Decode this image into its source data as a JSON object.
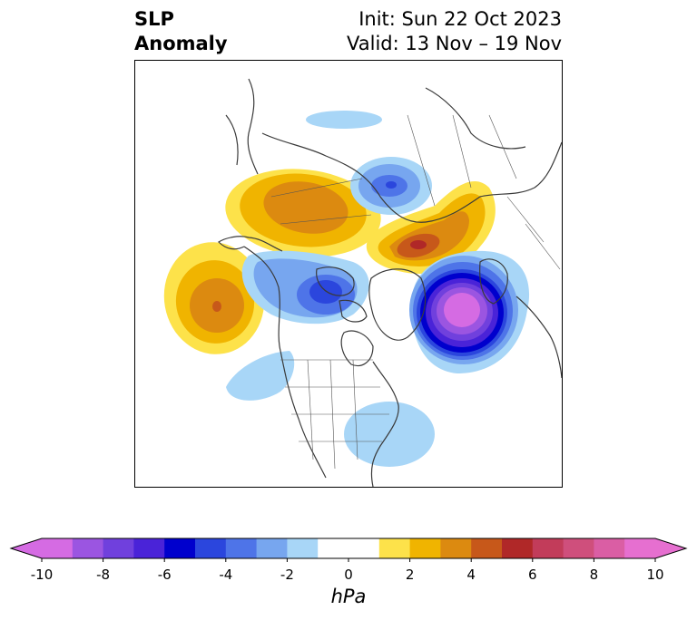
{
  "header": {
    "title_line1": "SLP",
    "title_line2": "Anomaly",
    "init": "Init: Sun 22 Oct 2023",
    "valid": "Valid: 13 Nov – 19 Nov"
  },
  "colorbar": {
    "unit": "hPa",
    "ticks": [
      "-10",
      "-8",
      "-6",
      "-4",
      "-2",
      "0",
      "2",
      "4",
      "6",
      "8",
      "10"
    ],
    "tick_values": [
      -10,
      -8,
      -6,
      -4,
      -2,
      0,
      2,
      4,
      6,
      8,
      10
    ],
    "bins": [
      -10,
      -9,
      -8,
      -7,
      -6,
      -5,
      -4,
      -3,
      -2,
      -1,
      1,
      2,
      3,
      4,
      5,
      6,
      7,
      8,
      9,
      10
    ],
    "colors": [
      "#d56be3",
      "#9b55e1",
      "#7040dd",
      "#4a23d8",
      "#0000cd",
      "#2b46dd",
      "#4e74e8",
      "#77a6ef",
      "#a8d6f7",
      "#ffffff",
      "#fde24a",
      "#f0b400",
      "#dc8a10",
      "#c7581a",
      "#b02828",
      "#c23c5a",
      "#cf4f7c",
      "#da5ea4",
      "#e66fd0"
    ]
  },
  "map": {
    "projection": "north-polar-stereographic",
    "region": "North America / Arctic / Northern Asia",
    "anomaly_features": [
      {
        "location": "Eastern Siberia / Yakutia",
        "sign": "positive",
        "peak_hPa": 4.5
      },
      {
        "location": "North Pacific",
        "sign": "positive",
        "peak_hPa": 5.5
      },
      {
        "location": "Kara Sea / northern Russia",
        "sign": "positive",
        "peak_hPa": 6.5
      },
      {
        "location": "Greenland Sea / Scandinavia",
        "sign": "negative",
        "peak_hPa": -9.5
      },
      {
        "location": "Canadian Arctic / Beaufort Sea",
        "sign": "negative",
        "peak_hPa": -6
      },
      {
        "location": "Laptev Sea",
        "sign": "negative",
        "peak_hPa": -3.5
      },
      {
        "location": "Western North Atlantic",
        "sign": "negative",
        "peak_hPa": -2
      },
      {
        "location": "Northeast Pacific / Pacific NW",
        "sign": "negative",
        "peak_hPa": -2
      }
    ]
  }
}
